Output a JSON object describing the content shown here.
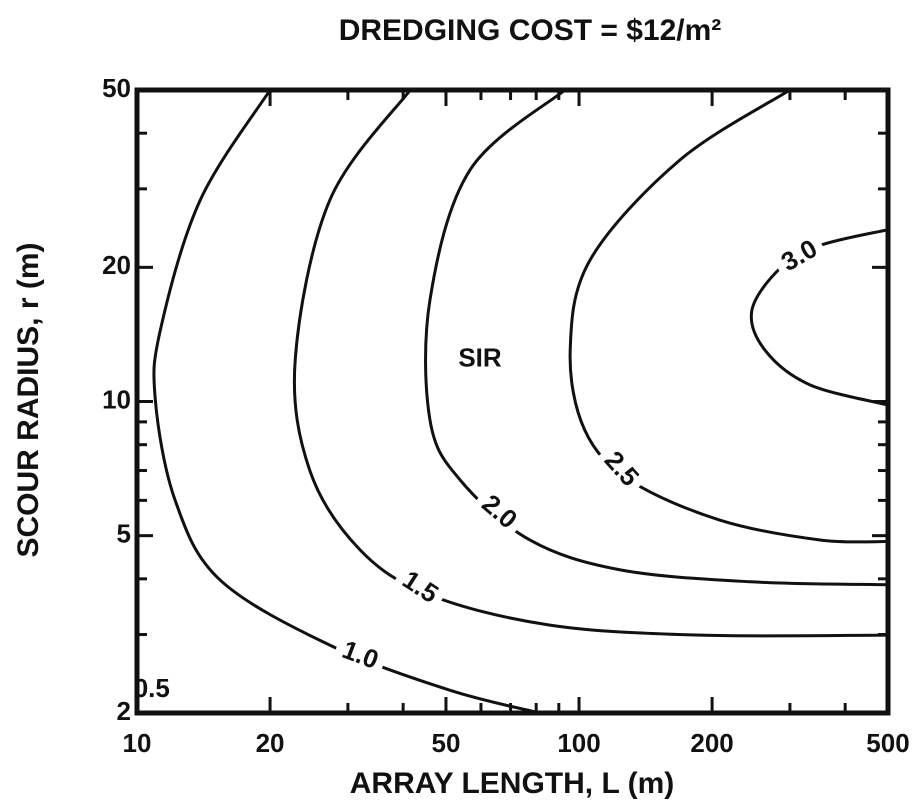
{
  "chart_data": {
    "type": "contour",
    "title": "DREDGING COST = $12/m²",
    "xlabel": "ARRAY LENGTH, L (m)",
    "ylabel": "SCOUR RADIUS, r (m)",
    "xscale": "log",
    "yscale": "log",
    "xlim": [
      10,
      500
    ],
    "ylim": [
      2,
      50
    ],
    "xticks": [
      10,
      20,
      50,
      100,
      200,
      500
    ],
    "yticks": [
      2,
      5,
      10,
      20,
      50
    ],
    "xticks_minor": [
      30,
      40,
      60,
      70,
      80,
      90,
      300,
      400
    ],
    "yticks_minor": [
      3,
      4,
      6,
      7,
      8,
      9,
      30,
      40
    ],
    "color": "#111111",
    "series": [
      {
        "name": "1.0",
        "x": [
          20.0,
          13.9,
          11.3,
          11.0,
          12.2,
          15.4,
          27.3,
          51,
          81.6
        ],
        "y": [
          50,
          28.3,
          14.5,
          10.1,
          6.0,
          3.98,
          2.84,
          2.25,
          2
        ]
      },
      {
        "name": "1.5",
        "x": [
          41.5,
          27.3,
          22.8,
          24.6,
          32.0,
          46.0,
          85.9,
          188,
          500
        ],
        "y": [
          50,
          28.3,
          12.4,
          7.0,
          4.64,
          3.68,
          3.15,
          2.99,
          2.99
        ]
      },
      {
        "name": "2.0",
        "x": [
          92.9,
          56.7,
          46.0,
          46.0,
          53.8,
          77.4,
          124,
          244,
          500
        ],
        "y": [
          50,
          33.1,
          16.9,
          9.09,
          6.67,
          4.89,
          4.19,
          3.94,
          3.88
        ]
      },
      {
        "name": "2.5",
        "x": [
          300,
          169,
          106,
          95.5,
          103,
          130,
          208,
          351,
          500
        ],
        "y": [
          50,
          34.8,
          20.8,
          13.0,
          8.63,
          6.67,
          5.42,
          4.89,
          4.85
        ]
      },
      {
        "name": "3.0",
        "x": [
          500,
          351,
          285,
          246,
          264,
          333,
          500
        ],
        "y": [
          24.3,
          22.4,
          19.9,
          16.0,
          13.0,
          10.9,
          9.82
        ]
      }
    ],
    "annotations": [
      {
        "text": "SIR",
        "x": 59.7,
        "y": 12.4
      },
      {
        "text": "0.5",
        "x": 10.8,
        "y": 2.25
      }
    ]
  }
}
